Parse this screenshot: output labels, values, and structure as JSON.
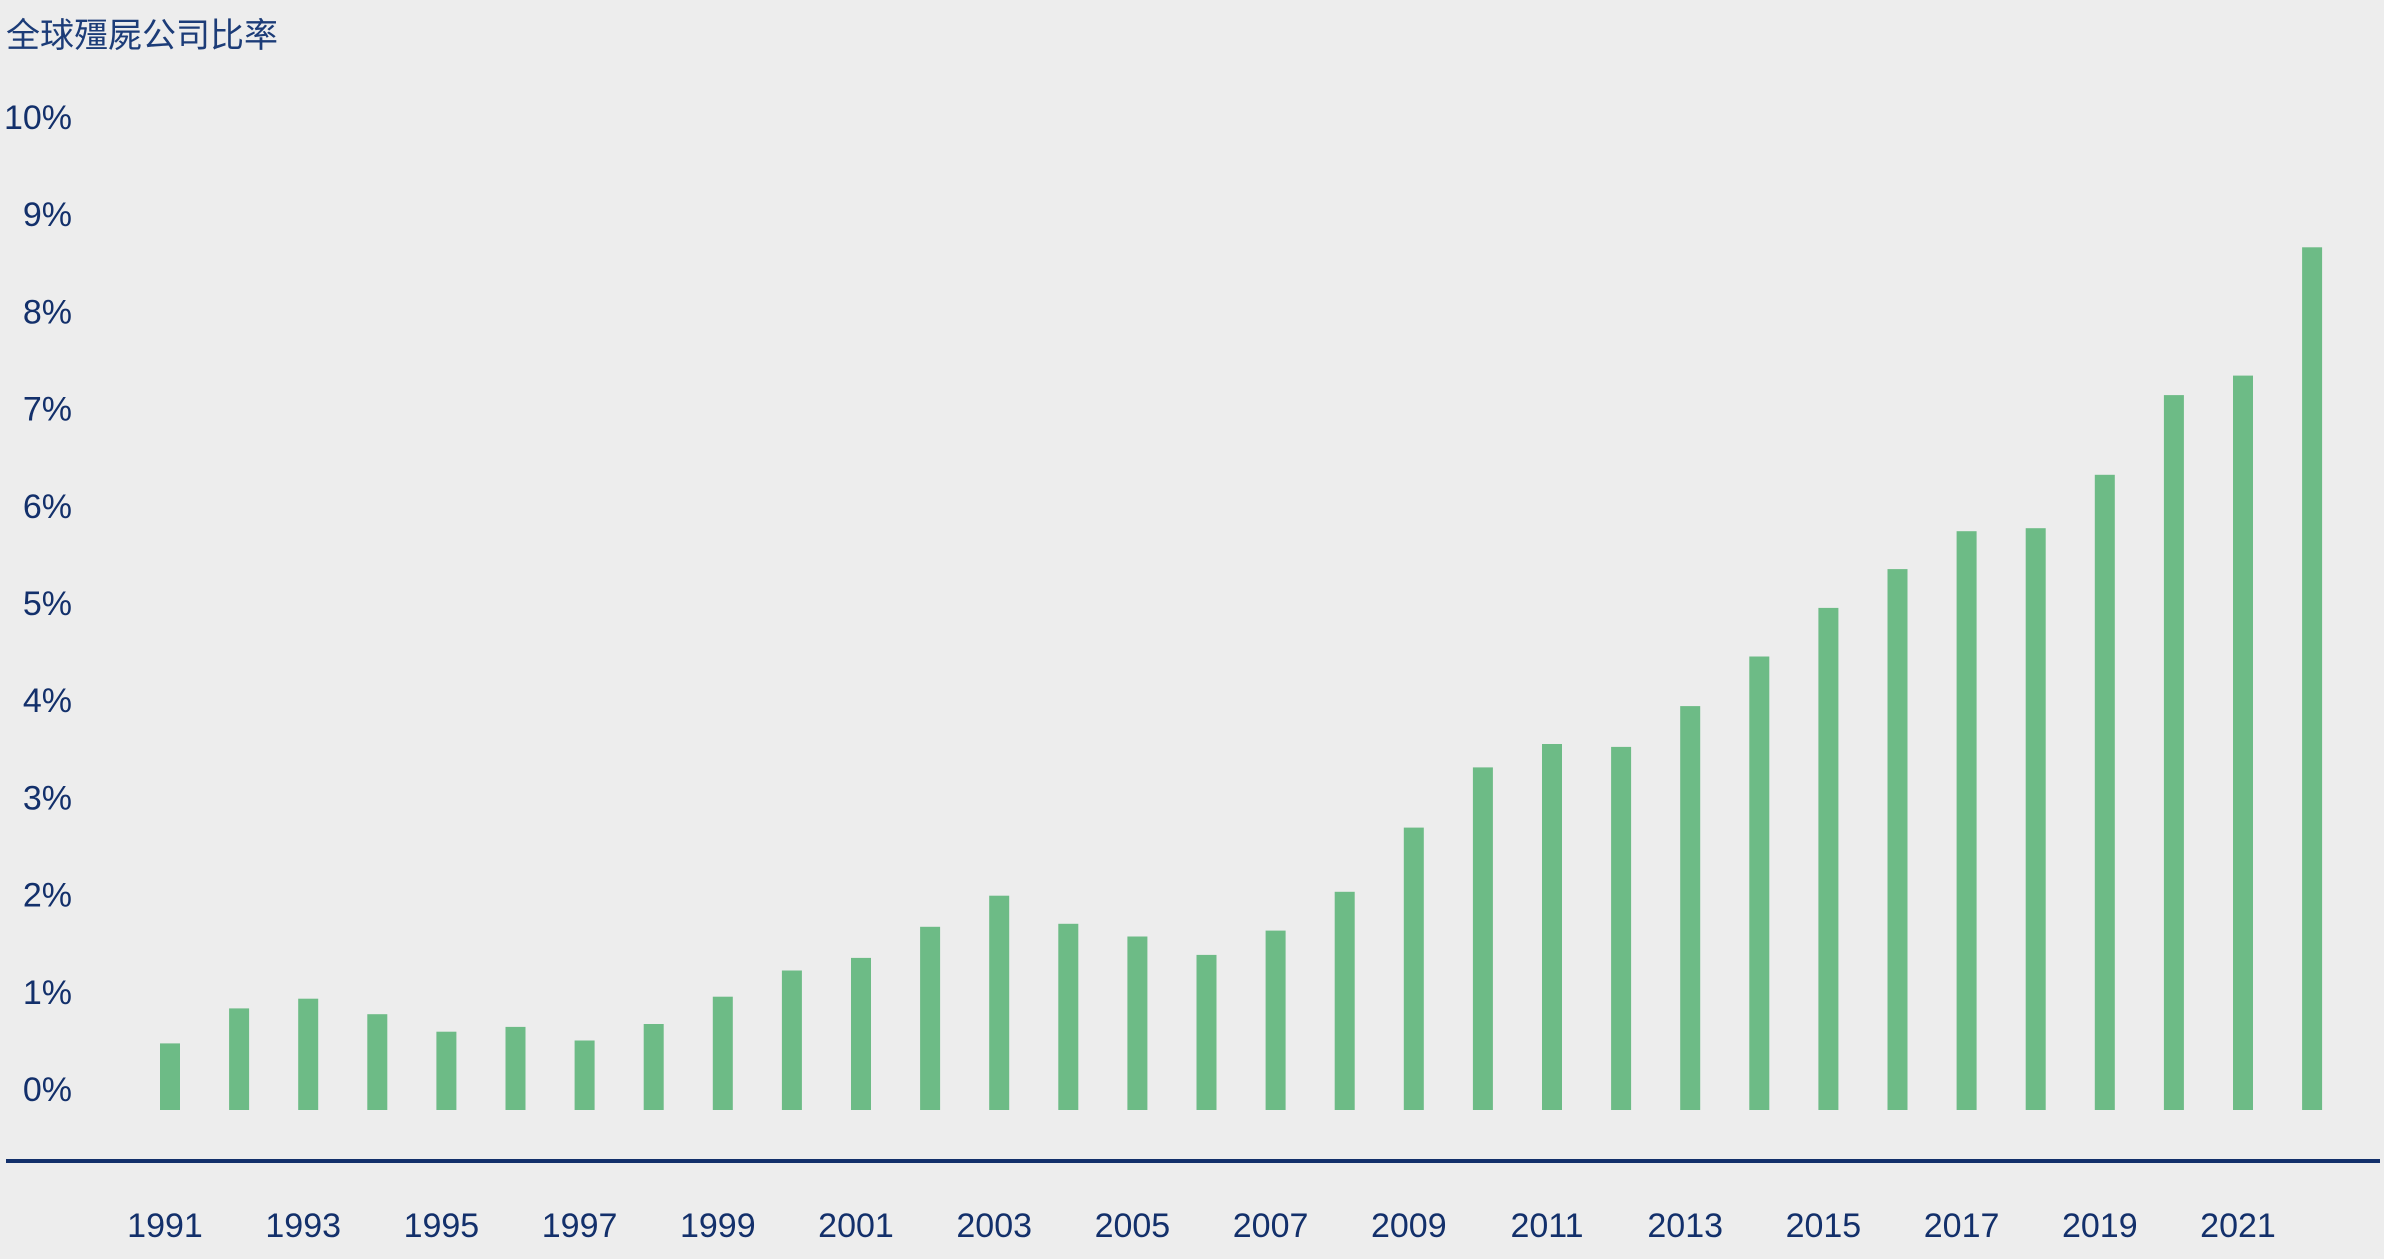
{
  "chart_data": {
    "type": "bar",
    "title": "全球殭屍公司比率",
    "xlabel": "",
    "ylabel": "",
    "years": [
      1991,
      1992,
      1993,
      1994,
      1995,
      1996,
      1997,
      1998,
      1999,
      2000,
      2001,
      2002,
      2003,
      2004,
      2005,
      2006,
      2007,
      2008,
      2009,
      2010,
      2011,
      2012,
      2013,
      2014,
      2015,
      2016,
      2017,
      2018,
      2019,
      2020,
      2021,
      2022
    ],
    "x_tick_labels": [
      "1991",
      "1993",
      "1995",
      "1997",
      "1999",
      "2001",
      "2003",
      "2005",
      "2007",
      "2009",
      "2011",
      "2013",
      "2015",
      "2017",
      "2019",
      "2021"
    ],
    "values": [
      0.5,
      0.86,
      0.96,
      0.8,
      0.62,
      0.67,
      0.53,
      0.7,
      0.98,
      1.25,
      1.38,
      1.7,
      2.02,
      1.73,
      1.6,
      1.41,
      1.66,
      2.06,
      2.72,
      3.34,
      3.58,
      3.55,
      3.97,
      4.48,
      4.98,
      5.38,
      5.77,
      5.8,
      6.35,
      7.17,
      7.37,
      8.69
    ],
    "y_ticks": [
      "0%",
      "1%",
      "2%",
      "3%",
      "4%",
      "5%",
      "6%",
      "7%",
      "8%",
      "9%",
      "10%"
    ],
    "ylim": [
      0,
      10
    ],
    "grid": false,
    "legend": "none",
    "colors": {
      "bar": "#6dbb86",
      "axis_line": "#13306b",
      "text": "#13306b",
      "background": "#ededed"
    }
  }
}
